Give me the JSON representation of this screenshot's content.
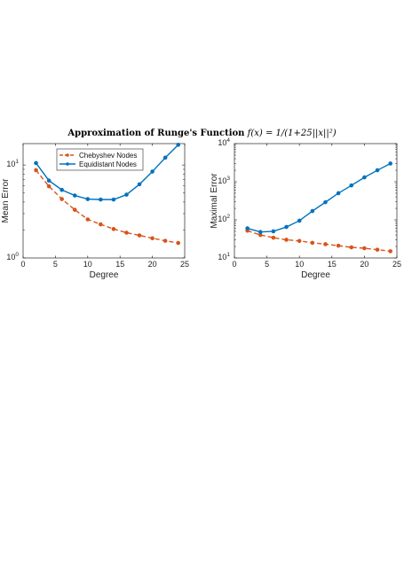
{
  "figure": {
    "title": "Approximation of Runge's Function",
    "formula": "f(x) = 1/(1+25||x||²)"
  },
  "colors": {
    "chebyshev": "#d95319",
    "equidistant": "#0072bd",
    "axis": "#262626"
  },
  "chart_data": [
    {
      "type": "line",
      "title": "",
      "xlabel": "Degree",
      "ylabel": "Mean Error",
      "xlim": [
        0,
        25
      ],
      "ylim": [
        1,
        17
      ],
      "yscale": "log",
      "xticks": [
        0,
        5,
        10,
        15,
        20,
        25
      ],
      "yticks": [
        {
          "value": 1,
          "label": "10",
          "exp": "0"
        },
        {
          "value": 10,
          "label": "10",
          "exp": "1"
        }
      ],
      "legend": "top-left",
      "x": [
        2,
        4,
        6,
        8,
        10,
        12,
        14,
        16,
        18,
        20,
        22,
        24
      ],
      "series": [
        {
          "name": "Chebyshev Nodes",
          "style": "dashed",
          "values": [
            8.8,
            5.9,
            4.3,
            3.3,
            2.6,
            2.3,
            2.05,
            1.87,
            1.75,
            1.63,
            1.53,
            1.45
          ]
        },
        {
          "name": "Equidistant Nodes",
          "style": "solid",
          "values": [
            10.5,
            6.8,
            5.4,
            4.7,
            4.3,
            4.25,
            4.25,
            4.8,
            6.2,
            8.5,
            12.0,
            16.5
          ]
        }
      ]
    },
    {
      "type": "line",
      "title": "",
      "xlabel": "Degree",
      "ylabel": "Maximal Error",
      "xlim": [
        0,
        25
      ],
      "ylim": [
        10,
        10000
      ],
      "yscale": "log",
      "xticks": [
        0,
        5,
        10,
        15,
        20,
        25
      ],
      "yticks": [
        {
          "value": 10,
          "label": "10",
          "exp": "1"
        },
        {
          "value": 100,
          "label": "10",
          "exp": "2"
        },
        {
          "value": 1000,
          "label": "10",
          "exp": "3"
        },
        {
          "value": 10000,
          "label": "10",
          "exp": "4"
        }
      ],
      "x": [
        2,
        4,
        6,
        8,
        10,
        12,
        14,
        16,
        18,
        20,
        22,
        24
      ],
      "series": [
        {
          "name": "Chebyshev Nodes",
          "style": "dashed",
          "values": [
            52,
            40,
            34,
            30,
            28,
            25,
            23,
            21,
            19,
            18,
            16.5,
            15
          ]
        },
        {
          "name": "Equidistant Nodes",
          "style": "solid",
          "values": [
            60,
            48,
            50,
            65,
            95,
            170,
            290,
            500,
            800,
            1300,
            2000,
            3000
          ]
        }
      ]
    }
  ]
}
